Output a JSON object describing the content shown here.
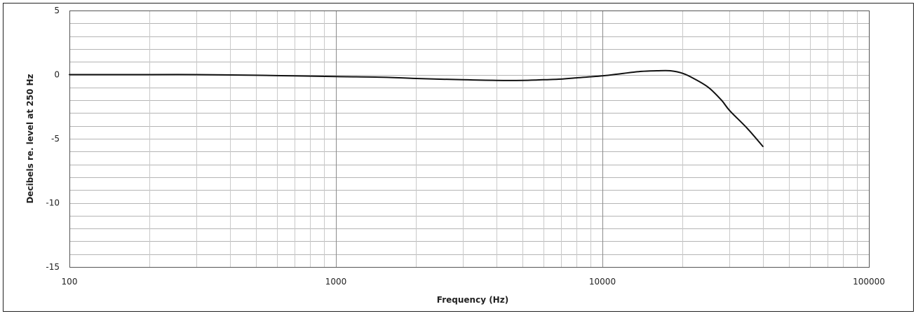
{
  "chart_data": {
    "type": "line",
    "title": "",
    "xlabel": "Frequency (Hz)",
    "ylabel": "Decibels re. level at 250 Hz",
    "x_scale": "log",
    "xlim": [
      100,
      100000
    ],
    "ylim": [
      -15,
      5
    ],
    "x_ticks": [
      100,
      1000,
      10000,
      100000
    ],
    "x_tick_labels": [
      "100",
      "1000",
      "10000",
      "100000"
    ],
    "y_ticks": [
      5,
      0,
      -5,
      -10,
      -15
    ],
    "y_tick_labels": [
      "5",
      "0",
      "-5",
      "-10",
      "-15"
    ],
    "grid": true,
    "legend": "none",
    "line_color": "#111111",
    "series": [
      {
        "x": [
          100,
          200,
          300,
          500,
          700,
          1000,
          1500,
          2000,
          3000,
          4000,
          5000,
          6000,
          7000,
          8000,
          10000,
          12000,
          14000,
          16000,
          18000,
          20000,
          22000,
          25000,
          28000,
          30000,
          35000,
          40000
        ],
        "values": [
          0,
          0,
          0,
          -0.05,
          -0.1,
          -0.15,
          -0.2,
          -0.3,
          -0.4,
          -0.45,
          -0.45,
          -0.4,
          -0.35,
          -0.25,
          -0.1,
          0.1,
          0.25,
          0.3,
          0.3,
          0.1,
          -0.3,
          -1.0,
          -2.0,
          -2.8,
          -4.2,
          -5.6
        ]
      }
    ]
  }
}
